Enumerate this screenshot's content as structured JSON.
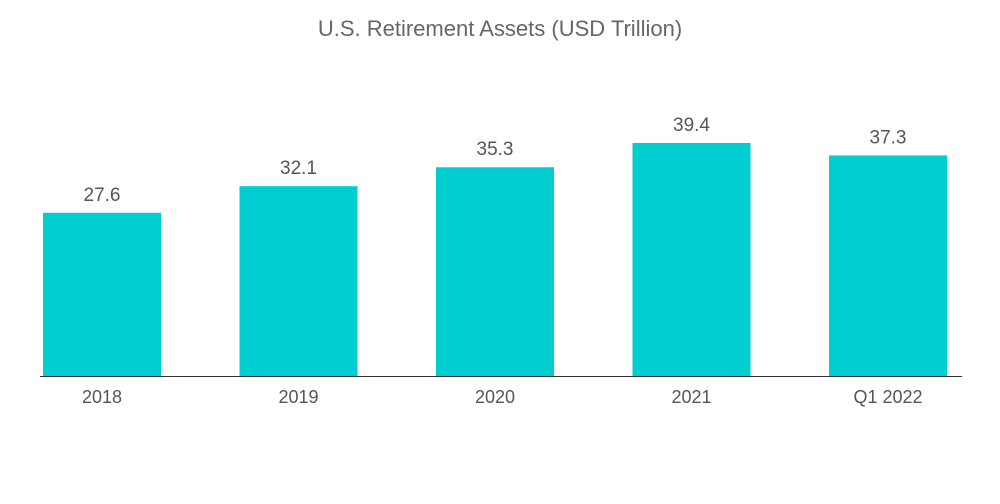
{
  "chart_data": {
    "type": "bar",
    "title": "U.S. Retirement Assets (USD Trillion)",
    "xlabel": "",
    "ylabel": "",
    "categories": [
      "2018",
      "2019",
      "2020",
      "2021",
      "Q1 2022"
    ],
    "values": [
      27.6,
      32.1,
      35.3,
      39.4,
      37.3
    ],
    "value_labels": [
      "27.6",
      "32.1",
      "35.3",
      "39.4",
      "37.3"
    ],
    "ylim": [
      0,
      39.4
    ],
    "grid": false,
    "legend": "none",
    "bar_color": "#00CED1",
    "text_color": "#555555",
    "axis_color": "#333333"
  }
}
